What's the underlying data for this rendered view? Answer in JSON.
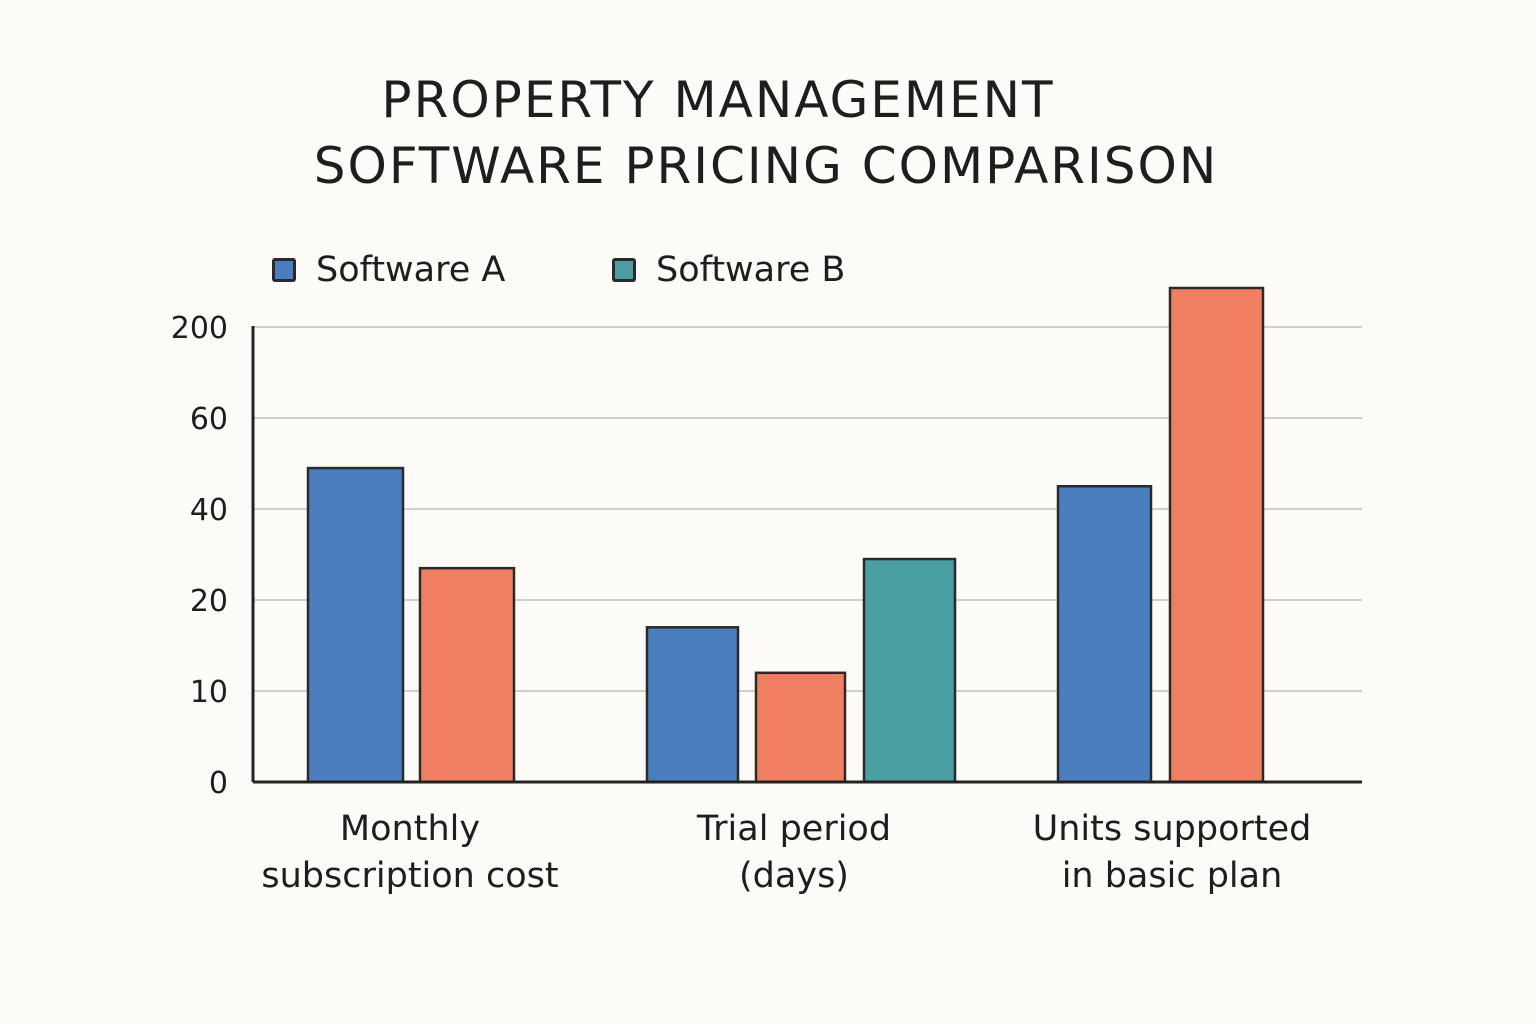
{
  "chart_data": {
    "type": "bar",
    "title_lines": [
      "PROPERTY MANAGEMENT",
      "SOFTWARE PRICING COMPARISON"
    ],
    "categories": [
      [
        "Monthly",
        "subscription cost"
      ],
      [
        "Trial period",
        "(days)"
      ],
      [
        "Units supported",
        "in basic plan"
      ]
    ],
    "y_ticks": [
      "0",
      "10",
      "20",
      "40",
      "60",
      "200"
    ],
    "y_tick_values": [
      0,
      10,
      20,
      40,
      60,
      200
    ],
    "grid": true,
    "legend_placement": "top-left",
    "legend": [
      {
        "name": "Software A",
        "color": "#4a7ebf"
      },
      {
        "name": "Software B",
        "color": "#4a9fa3"
      }
    ],
    "series": [
      {
        "name": "Software A",
        "color": "#4a7ebf",
        "values": [
          49,
          17,
          45
        ]
      },
      {
        "color": "#f07f62",
        "values": [
          27,
          12,
          260
        ]
      },
      {
        "name": "Software B",
        "color": "#4a9fa3",
        "values": [
          null,
          29,
          null
        ]
      }
    ]
  }
}
